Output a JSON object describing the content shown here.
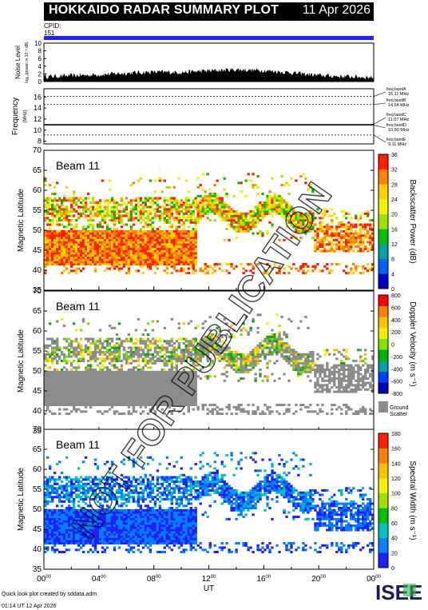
{
  "header": {
    "title": "HOKKAIDO RADAR SUMMARY PLOT",
    "date": "11 Apr 2026"
  },
  "cpid": {
    "label": "CPID:",
    "value": "151"
  },
  "watermark": "NOT FOR PUBLICATION",
  "noise": {
    "ylabel_main": "Noise Level",
    "ylabel_sub": "log₁₀(power in 10⁻³ dB)",
    "ticks": [
      "0",
      "2",
      "4",
      "6",
      "8",
      "10"
    ]
  },
  "frequency": {
    "ylabel_main": "Frequency",
    "ylabel_sub": "(MHz)",
    "ticks": [
      "8",
      "10",
      "12",
      "14",
      "16"
    ],
    "bands": [
      {
        "name": "freq bandA",
        "freq": "16.11 MHz"
      },
      {
        "name": "freq bandB",
        "freq": "14.64 MHz"
      },
      {
        "name": "freq bandC",
        "freq": "11.07 MHz"
      },
      {
        "name": "freq bandD",
        "freq": "10.90 MHz"
      },
      {
        "name": "freq bandE",
        "freq": "9.11 MHz"
      }
    ]
  },
  "panels": [
    {
      "beam": "Beam 11",
      "ylabel": "Magnetic Latitude",
      "cbar_label": "Backscatter Power (dB)",
      "cbar_ticks": [
        "0",
        "4",
        "8",
        "12",
        "16",
        "20",
        "24",
        "28",
        "32",
        "36"
      ]
    },
    {
      "beam": "Beam 11",
      "ylabel": "Magnetic Latitude",
      "cbar_label": "Doppler Velocity (m s⁻¹)",
      "cbar_ticks": [
        "-800",
        "-600",
        "-400",
        "-200",
        "0",
        "200",
        "400",
        "600",
        "800"
      ],
      "ground_label_1": "Ground",
      "ground_label_2": "Scatter"
    },
    {
      "beam": "Beam 11",
      "ylabel": "Magnetic Latitude",
      "cbar_label": "Spectral Width (m s⁻¹)",
      "cbar_ticks": [
        "0",
        "20",
        "40",
        "60",
        "80",
        "100",
        "120",
        "140",
        "160",
        "180"
      ]
    }
  ],
  "lat_ticks": [
    "35",
    "40",
    "45",
    "50",
    "55",
    "60",
    "65",
    "70"
  ],
  "xaxis": {
    "label": "UT",
    "ticks": [
      "00",
      "04",
      "08",
      "12",
      "16",
      "20",
      "00"
    ],
    "tick_sup": "00"
  },
  "footer": {
    "line1": "Quick look plot created by sddata.adm",
    "line2": "01:14 UT 12 Apr 2026"
  },
  "logo": "ISEE",
  "colors": {
    "cpid_bar": "#2020ff",
    "power": [
      "#ff2000",
      "#ff8000",
      "#ffd000",
      "#f0f000",
      "#a0e000",
      "#00c000",
      "#00a0a0",
      "#0060ff",
      "#0000c0"
    ],
    "velocity": [
      "#ff0000",
      "#ff8000",
      "#ffc000",
      "#f0f000",
      "#80e000",
      "#00b000",
      "#00a0a0",
      "#0040ff",
      "#0000c0"
    ],
    "width": [
      "#2020ff",
      "#0080ff",
      "#00c0c0",
      "#00c000",
      "#a0e000",
      "#f0f000",
      "#ffc000",
      "#ff8000",
      "#ff2000"
    ]
  },
  "chart_data": [
    {
      "type": "line",
      "title": "Noise Level",
      "ylim": [
        0,
        10
      ],
      "xlim_hours": [
        0,
        24
      ],
      "x": [
        0,
        2,
        4,
        6,
        8,
        10,
        12,
        14,
        16,
        18,
        20,
        22,
        24
      ],
      "values": [
        1.3,
        1.5,
        1.8,
        2.2,
        2.5,
        2.4,
        2.8,
        3.1,
        2.9,
        2.3,
        1.6,
        1.3,
        1.1
      ]
    },
    {
      "type": "line",
      "title": "Frequency",
      "ylim": [
        7.5,
        17.5
      ],
      "series": [
        {
          "name": "freq bandA",
          "values": [
            16.11
          ]
        },
        {
          "name": "freq bandB",
          "values": [
            14.64
          ]
        },
        {
          "name": "freq bandC",
          "values": [
            11.07
          ]
        },
        {
          "name": "freq bandD",
          "values": [
            10.9
          ]
        },
        {
          "name": "freq bandE",
          "values": [
            9.11
          ]
        }
      ]
    },
    {
      "type": "heatmap",
      "title": "Beam 11 Backscatter Power (dB)",
      "ylim": [
        35,
        70
      ],
      "xlim_hours": [
        0,
        24
      ]
    },
    {
      "type": "heatmap",
      "title": "Beam 11 Doppler Velocity (m s⁻¹)",
      "ylim": [
        35,
        70
      ],
      "xlim_hours": [
        0,
        24
      ]
    },
    {
      "type": "heatmap",
      "title": "Beam 11 Spectral Width (m s⁻¹)",
      "ylim": [
        35,
        70
      ],
      "xlim_hours": [
        0,
        24
      ]
    }
  ]
}
